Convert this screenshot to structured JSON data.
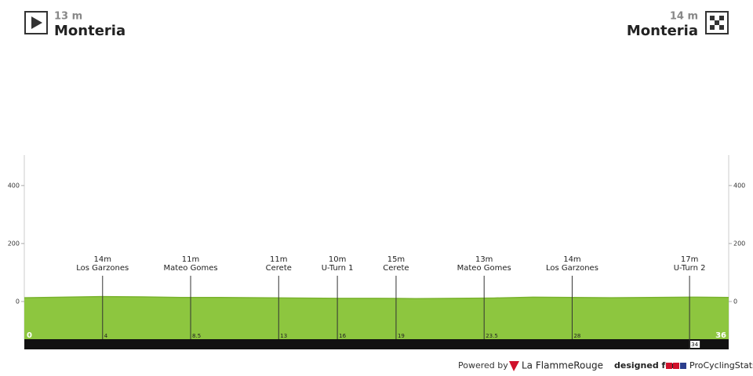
{
  "chart_data": {
    "type": "area",
    "start": {
      "altitude_label": "13 m",
      "name": "Monteria"
    },
    "finish": {
      "altitude_label": "14 m",
      "name": "Monteria"
    },
    "x": [
      0,
      2,
      4,
      6,
      8,
      10,
      12,
      14,
      16,
      18,
      20,
      22,
      24,
      26,
      28,
      30,
      32,
      34,
      36
    ],
    "values": [
      13,
      15,
      17,
      16,
      14,
      14,
      13,
      12,
      11,
      11,
      10,
      11,
      12,
      15,
      14,
      13,
      14,
      15,
      14
    ],
    "color": "#8dc63f",
    "xlim": [
      0,
      36
    ],
    "xticks": [
      0,
      36
    ],
    "ylim": [
      -130,
      505
    ],
    "yticks": [
      0,
      200,
      400
    ],
    "waypoints": {
      "km": [
        4,
        8.5,
        13,
        16,
        19,
        23.5,
        28,
        34
      ],
      "altitudes": [
        14,
        11,
        11,
        10,
        15,
        13,
        14,
        17
      ],
      "altitude_labels": [
        "14m",
        "11m",
        "11m",
        "10m",
        "15m",
        "13m",
        "14m",
        "17m"
      ],
      "names": [
        "Los Garzones",
        "Mateo Gomes",
        "Cerete",
        "U-Turn 1",
        "Cerete",
        "Mateo Gomes",
        "Los Garzones",
        "U-Turn 2"
      ]
    }
  },
  "footer": {
    "powered_by": "Powered by",
    "brand": "La FlammeRouge",
    "designed_for": "designed for",
    "site": "ProCyclingStats"
  }
}
